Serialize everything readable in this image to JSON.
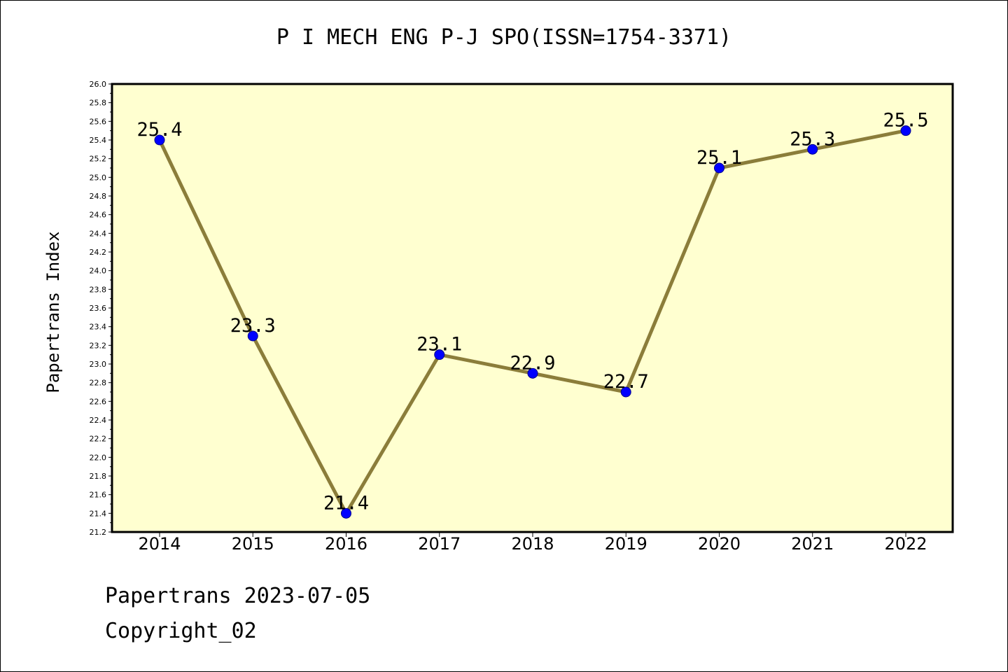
{
  "chart_data": {
    "type": "line",
    "title": "P I MECH ENG P-J SPO(ISSN=1754-3371)",
    "xlabel": "",
    "ylabel": "Papertrans Index",
    "categories": [
      "2014",
      "2015",
      "2016",
      "2017",
      "2018",
      "2019",
      "2020",
      "2021",
      "2022"
    ],
    "series": [
      {
        "values": [
          25.4,
          23.3,
          21.4,
          23.1,
          22.9,
          22.7,
          25.1,
          25.3,
          25.5
        ],
        "data_labels": [
          "25.4",
          "23.3",
          "21.4",
          "23.1",
          "22.9",
          "22.7",
          "25.1",
          "25.3",
          "25.5"
        ]
      }
    ],
    "ylim": [
      21.2,
      26.0
    ],
    "y_ticks": [
      "21.2",
      "21.4",
      "21.6",
      "21.8",
      "22.0",
      "22.2",
      "22.4",
      "22.6",
      "22.8",
      "23.0",
      "23.2",
      "23.4",
      "23.6",
      "23.8",
      "24.0",
      "24.2",
      "24.4",
      "24.6",
      "24.8",
      "25.0",
      "25.2",
      "25.4",
      "25.6",
      "25.8",
      "26.0"
    ],
    "grid": false,
    "colors": {
      "plot_background": "#ffffd0",
      "line": "#8b7d3a",
      "marker": "#0000ff"
    }
  },
  "footer": {
    "date_line": "Papertrans 2023-07-05",
    "copyright": "Copyright_02"
  }
}
